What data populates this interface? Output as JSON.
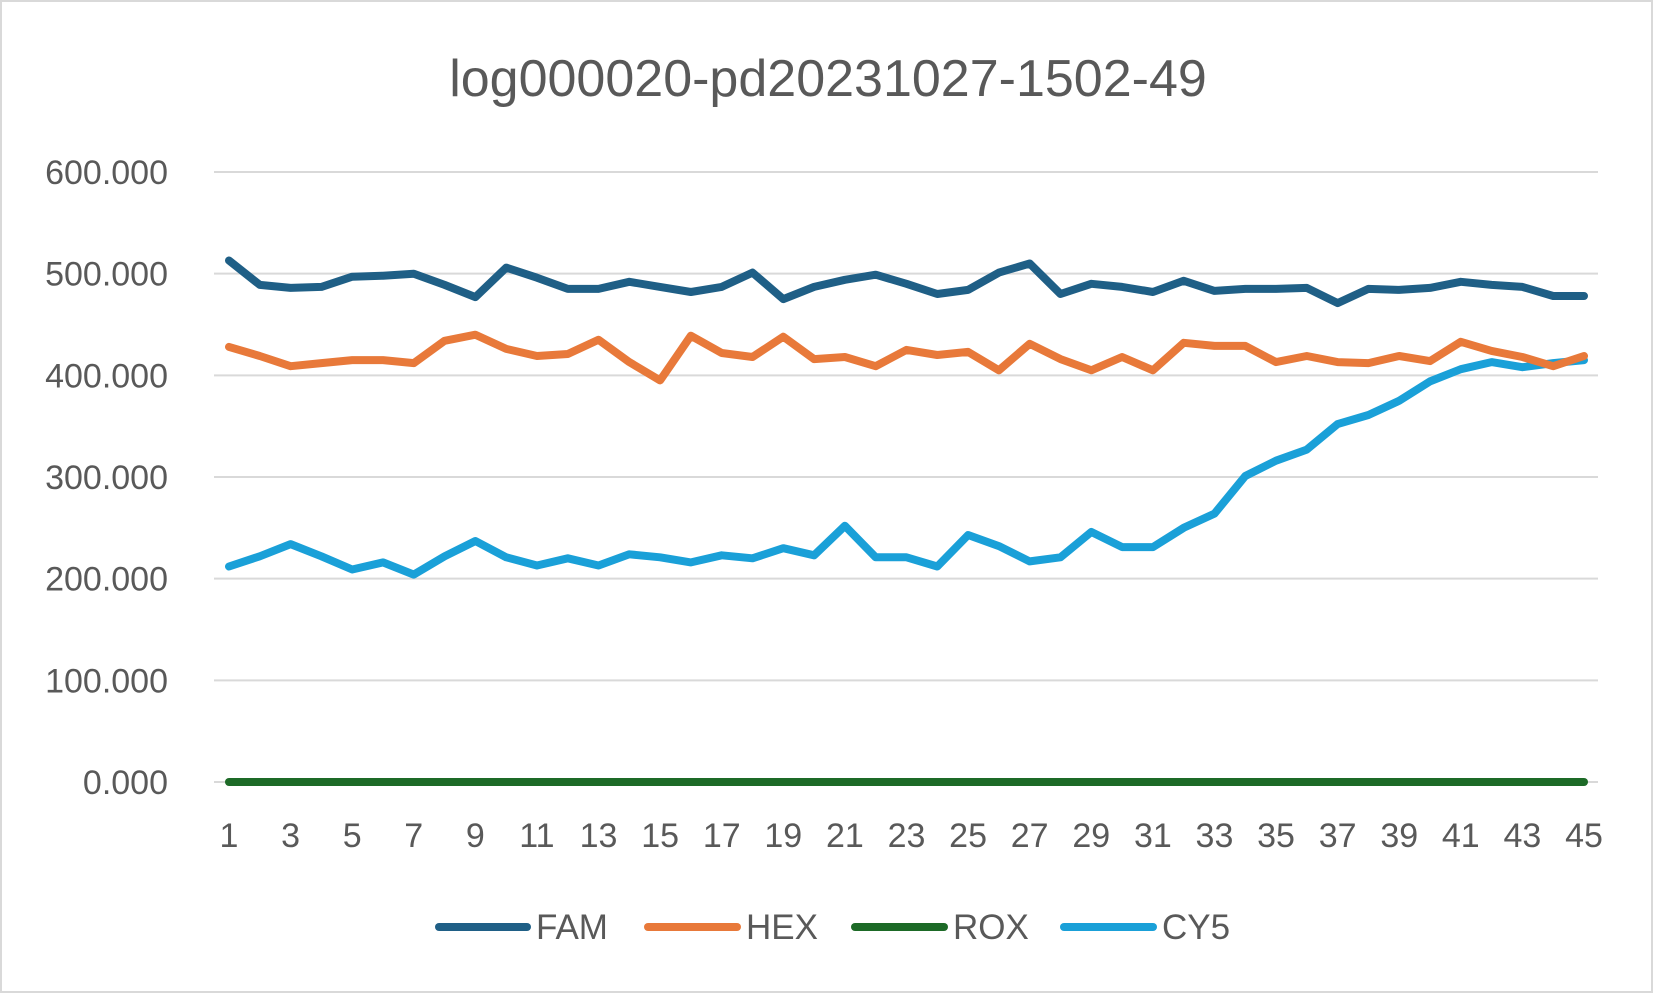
{
  "chart_data": {
    "type": "line",
    "title": "log000020-pd20231027-1502-49",
    "xlabel": "",
    "ylabel": "",
    "ylim": [
      0,
      600
    ],
    "yticks": [
      "0.000",
      "100.000",
      "200.000",
      "300.000",
      "400.000",
      "500.000",
      "600.000"
    ],
    "x": [
      1,
      2,
      3,
      4,
      5,
      6,
      7,
      8,
      9,
      10,
      11,
      12,
      13,
      14,
      15,
      16,
      17,
      18,
      19,
      20,
      21,
      22,
      23,
      24,
      25,
      26,
      27,
      28,
      29,
      30,
      31,
      32,
      33,
      34,
      35,
      36,
      37,
      38,
      39,
      40,
      41,
      42,
      43,
      44,
      45
    ],
    "xtick_labels": [
      "1",
      "3",
      "5",
      "7",
      "9",
      "11",
      "13",
      "15",
      "17",
      "19",
      "21",
      "23",
      "25",
      "27",
      "29",
      "31",
      "33",
      "35",
      "37",
      "39",
      "41",
      "43",
      "45"
    ],
    "grid": true,
    "legend_position": "bottom",
    "series": [
      {
        "name": "FAM",
        "color": "#1f5f86",
        "values": [
          513,
          489,
          486,
          487,
          497,
          498,
          500,
          489,
          477,
          506,
          496,
          485,
          485,
          492,
          487,
          482,
          487,
          501,
          475,
          487,
          494,
          499,
          490,
          480,
          484,
          501,
          510,
          480,
          490,
          487,
          482,
          493,
          483,
          485,
          485,
          486,
          471,
          485,
          484,
          486,
          492,
          489,
          487,
          478,
          478
        ]
      },
      {
        "name": "HEX",
        "color": "#e8793a",
        "values": [
          428,
          419,
          409,
          412,
          415,
          415,
          412,
          434,
          440,
          426,
          419,
          421,
          435,
          413,
          395,
          439,
          422,
          418,
          438,
          416,
          418,
          409,
          425,
          420,
          423,
          405,
          431,
          416,
          405,
          418,
          405,
          432,
          429,
          429,
          413,
          419,
          413,
          412,
          419,
          414,
          433,
          424,
          418,
          409,
          419
        ]
      },
      {
        "name": "ROX",
        "color": "#1d6a27",
        "values": [
          0,
          0,
          0,
          0,
          0,
          0,
          0,
          0,
          0,
          0,
          0,
          0,
          0,
          0,
          0,
          0,
          0,
          0,
          0,
          0,
          0,
          0,
          0,
          0,
          0,
          0,
          0,
          0,
          0,
          0,
          0,
          0,
          0,
          0,
          0,
          0,
          0,
          0,
          0,
          0,
          0,
          0,
          0,
          0,
          0
        ]
      },
      {
        "name": "CY5",
        "color": "#1aa0d8",
        "values": [
          212,
          222,
          234,
          222,
          209,
          216,
          204,
          222,
          237,
          221,
          213,
          220,
          213,
          224,
          221,
          216,
          223,
          220,
          230,
          223,
          252,
          221,
          221,
          212,
          243,
          232,
          217,
          221,
          246,
          231,
          231,
          250,
          264,
          301,
          316,
          327,
          352,
          361,
          375,
          394,
          406,
          413,
          408,
          412,
          415
        ]
      }
    ]
  }
}
